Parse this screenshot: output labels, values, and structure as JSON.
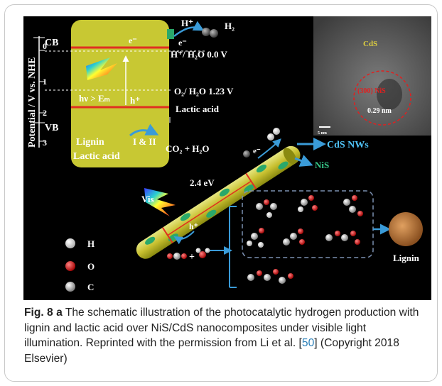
{
  "figure": {
    "axis_label": "Potential / V vs. NHE",
    "cb_label": "CB",
    "vb_label": "VB",
    "ticks": [
      "0",
      "1",
      "2",
      "3"
    ],
    "electron": "e⁻",
    "hole": "h⁺",
    "excitation": "hν > Eₘ",
    "proton": "H⁺",
    "h2": "H₂",
    "h_level": "H⁺/ H₂O  0.0 V",
    "o_level": "O₂/ H₂O  1.23 V",
    "lactic_top": "Lactic acid",
    "lignin": "Lignin",
    "lactic": "Lactic acid",
    "roman": "I & II",
    "products": "CO₂ + H₂O",
    "cds_nws": "CdS NWs",
    "nis": "NiS",
    "bandgap": "2.4 eV",
    "vis": "Vis",
    "plus": "+",
    "legend_h": "H",
    "legend_o": "O",
    "legend_c": "C",
    "lignin_photo_label": "Lignin",
    "tem_cds": "CdS",
    "tem_nis": "(300) NiS",
    "tem_spacing": "0.29 nm",
    "tem_scale": "5 nm"
  },
  "caption": {
    "label": "Fig. 8",
    "panel": "a",
    "text_before_ref": "The schematic illustration of the photocatalytic hydrogen production with lignin and lactic acid over NiS/CdS nanocomposites under visible light illumination. Reprinted with the permission from Li et al. [",
    "ref": "50",
    "text_after_ref": "] (Copyright 2018 Elsevier)"
  },
  "colors": {
    "panel": "#c8c833",
    "cb_line": "#e03020",
    "nis_green": "#2aa86a",
    "label_cyan": "#4fc3f7",
    "label_green": "#37c98a",
    "oxygen": "#e01010",
    "arrow_blue": "#3a9bd8"
  }
}
